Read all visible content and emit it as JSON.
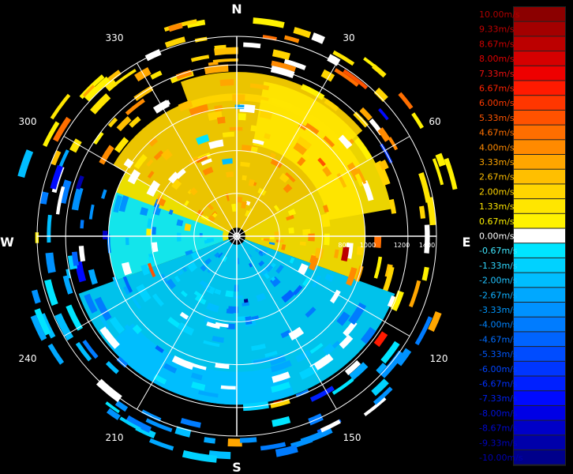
{
  "chart_data": {
    "type": "heatmap",
    "projection": "polar",
    "compass": {
      "north": "N",
      "east": "E",
      "south": "S",
      "west": "W"
    },
    "azimuth_labels": [
      "30",
      "60",
      "120",
      "150",
      "210",
      "240",
      "300",
      "330"
    ],
    "range_rings": [
      300,
      600,
      900,
      1200,
      1400
    ],
    "range_labels": [
      "800",
      "1000",
      "1200",
      "1400"
    ],
    "grid": true,
    "colorbar": {
      "position": "right",
      "unit": "m/s",
      "levels": [
        {
          "label": "10.00m/s",
          "value": 10.0,
          "color": "#8b0000",
          "text_color": "#b00000"
        },
        {
          "label": "9.33m/s",
          "value": 9.33,
          "color": "#a30000",
          "text_color": "#c00000"
        },
        {
          "label": "8.67m/s",
          "value": 8.67,
          "color": "#bc0000",
          "text_color": "#d00000"
        },
        {
          "label": "8.00m/s",
          "value": 8.0,
          "color": "#d50000",
          "text_color": "#e00000"
        },
        {
          "label": "7.33m/s",
          "value": 7.33,
          "color": "#ee0000",
          "text_color": "#f01010"
        },
        {
          "label": "6.67m/s",
          "value": 6.67,
          "color": "#ff1a00",
          "text_color": "#ff2200"
        },
        {
          "label": "6.00m/s",
          "value": 6.0,
          "color": "#ff3600",
          "text_color": "#ff3a00"
        },
        {
          "label": "5.33m/s",
          "value": 5.33,
          "color": "#ff5200",
          "text_color": "#ff5500"
        },
        {
          "label": "4.67m/s",
          "value": 4.67,
          "color": "#ff6e00",
          "text_color": "#ff7000"
        },
        {
          "label": "4.00m/s",
          "value": 4.0,
          "color": "#ff8a00",
          "text_color": "#ff8a00"
        },
        {
          "label": "3.33m/s",
          "value": 3.33,
          "color": "#ffa600",
          "text_color": "#ffa600"
        },
        {
          "label": "2.67m/s",
          "value": 2.67,
          "color": "#ffbf00",
          "text_color": "#ffbf00"
        },
        {
          "label": "2.00m/s",
          "value": 2.0,
          "color": "#ffd500",
          "text_color": "#ffd500"
        },
        {
          "label": "1.33m/s",
          "value": 1.33,
          "color": "#ffe600",
          "text_color": "#ffe600"
        },
        {
          "label": "0.67m/s",
          "value": 0.67,
          "color": "#fff200",
          "text_color": "#fff200"
        },
        {
          "label": "0.00m/s",
          "value": 0.0,
          "color": "#ffffff",
          "text_color": "#ffffff"
        },
        {
          "label": "-0.67m/s",
          "value": -0.67,
          "color": "#00e5ff",
          "text_color": "#40e8ff"
        },
        {
          "label": "-1.33m/s",
          "value": -1.33,
          "color": "#00d2ff",
          "text_color": "#30d8ff"
        },
        {
          "label": "-2.00m/s",
          "value": -2.0,
          "color": "#00beff",
          "text_color": "#20c4ff"
        },
        {
          "label": "-2.67m/s",
          "value": -2.67,
          "color": "#00a8ff",
          "text_color": "#10b0ff"
        },
        {
          "label": "-3.33m/s",
          "value": -3.33,
          "color": "#0092ff",
          "text_color": "#0098ff"
        },
        {
          "label": "-4.00m/s",
          "value": -4.0,
          "color": "#007cff",
          "text_color": "#0084ff"
        },
        {
          "label": "-4.67m/s",
          "value": -4.67,
          "color": "#0064ff",
          "text_color": "#006cff"
        },
        {
          "label": "-5.33m/s",
          "value": -5.33,
          "color": "#004cff",
          "text_color": "#0058ff"
        },
        {
          "label": "-6.00m/s",
          "value": -6.0,
          "color": "#0036ff",
          "text_color": "#0044ff"
        },
        {
          "label": "-6.67m/s",
          "value": -6.67,
          "color": "#0020ff",
          "text_color": "#0030ff"
        },
        {
          "label": "-7.33m/s",
          "value": -7.33,
          "color": "#000aff",
          "text_color": "#0020f0"
        },
        {
          "label": "-8.00m/s",
          "value": -8.0,
          "color": "#0000e6",
          "text_color": "#0010e0"
        },
        {
          "label": "-8.67m/s",
          "value": -8.67,
          "color": "#0000c8",
          "text_color": "#0008d0"
        },
        {
          "label": "-9.33m/s",
          "value": -9.33,
          "color": "#0000aa",
          "text_color": "#0004c0"
        },
        {
          "label": "-10.00m/s",
          "value": -10.0,
          "color": "#00008b",
          "text_color": "#0000b0"
        }
      ]
    },
    "sectors": [
      {
        "az": [
          -60,
          60
        ],
        "r": [
          60,
          1000
        ],
        "value": 1.8
      },
      {
        "az": [
          60,
          110
        ],
        "r": [
          60,
          900
        ],
        "value": 1.2
      },
      {
        "az": [
          -110,
          -60
        ],
        "r": [
          60,
          900
        ],
        "value": 0.9
      },
      {
        "az": [
          110,
          250
        ],
        "r": [
          60,
          1180
        ],
        "value": -1.5
      },
      {
        "az": [
          250,
          290
        ],
        "r": [
          100,
          900
        ],
        "value": -1.0
      },
      {
        "az": [
          -20,
          50
        ],
        "r": [
          950,
          1150
        ],
        "value": 2.2
      },
      {
        "az": [
          10,
          80
        ],
        "r": [
          650,
          1100
        ],
        "value": 1.6
      },
      {
        "az": [
          160,
          230
        ],
        "r": [
          950,
          1180
        ],
        "value": -2.0
      }
    ],
    "scatter_cells": {
      "count": 420,
      "value_range": [
        -10.0,
        10.0
      ]
    }
  }
}
